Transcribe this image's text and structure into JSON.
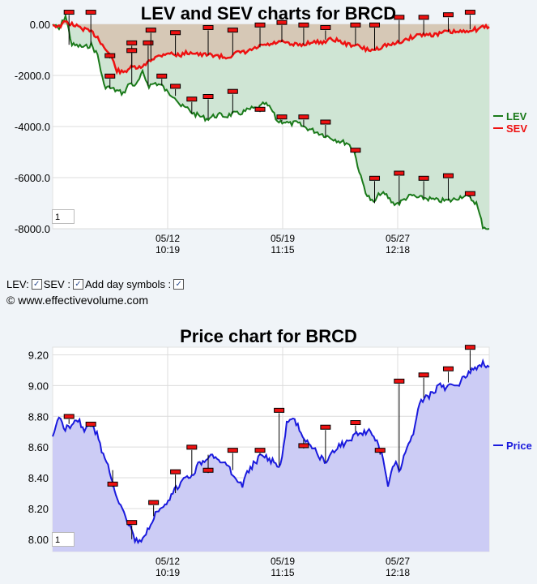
{
  "controls": {
    "lev_label": "LEV:",
    "sev_label": "SEV :",
    "day_symbols_label": "Add day symbols :",
    "lev_checked": true,
    "sev_checked": true,
    "day_symbols_checked": true
  },
  "copyright": "© www.effectivevolume.com",
  "chart_data": [
    {
      "type": "area",
      "title": "LEV and SEV charts for BRCD",
      "ylim": [
        -8000,
        0
      ],
      "yticks": [
        "0.00",
        "-2000.0",
        "-4000.0",
        "-6000.0",
        "-8000.0"
      ],
      "xticks": [
        {
          "date": "05/12",
          "time": "10:19"
        },
        {
          "date": "05/19",
          "time": "11:15"
        },
        {
          "date": "05/27",
          "time": "12:18"
        }
      ],
      "range_input": "1",
      "colors": {
        "LEV": "#1a7a1a",
        "SEV": "#ee1111",
        "lev_fill": "#cfe5d4",
        "sev_fill": "#d6c6b4"
      },
      "series": [
        {
          "name": "LEV",
          "values": [
            0,
            -200,
            350,
            -800,
            -850,
            -900,
            -800,
            -1200,
            -2400,
            -2500,
            -2600,
            -2700,
            -2300,
            -2400,
            -1900,
            -2400,
            -2300,
            -2400,
            -2700,
            -2800,
            -3200,
            -3300,
            -3500,
            -3600,
            -3700,
            -3600,
            -3550,
            -3600,
            -3500,
            -3500,
            -3400,
            -3300,
            -3300,
            -3100,
            -3300,
            -3800,
            -3800,
            -3900,
            -3850,
            -4000,
            -4100,
            -4200,
            -4300,
            -4400,
            -4500,
            -4600,
            -4650,
            -5000,
            -6000,
            -6700,
            -7000,
            -6600,
            -6700,
            -7000,
            -7000,
            -6800,
            -6700,
            -6800,
            -6800,
            -6850,
            -6900,
            -6900,
            -6900,
            -6800,
            -6700,
            -6800,
            -7000,
            -7900,
            -8000
          ]
        },
        {
          "name": "SEV",
          "values": [
            0,
            -100,
            100,
            0,
            -100,
            -200,
            -300,
            -500,
            -900,
            -1200,
            -1800,
            -1900,
            -1700,
            -1700,
            -1700,
            -1400,
            -1300,
            -1200,
            -1100,
            -1200,
            -1200,
            -1100,
            -1100,
            -1200,
            -1200,
            -1200,
            -1250,
            -1300,
            -1200,
            -1100,
            -1100,
            -1000,
            -900,
            -800,
            -800,
            -700,
            -700,
            -800,
            -800,
            -800,
            -700,
            -700,
            -700,
            -600,
            -600,
            -700,
            -800,
            -800,
            -900,
            -1000,
            -1000,
            -900,
            -800,
            -800,
            -700,
            -600,
            -500,
            -400,
            -400,
            -400,
            -400,
            -300,
            -300,
            -300,
            -300,
            -200,
            -200,
            -100,
            -100
          ]
        }
      ],
      "day_markers": {
        "LEV": [
          [
            6,
            300
          ],
          [
            14,
            300
          ],
          [
            21,
            -2200
          ],
          [
            29,
            -900
          ],
          [
            35,
            -900
          ],
          [
            40,
            -2200
          ],
          [
            45,
            -2600
          ],
          [
            51,
            -3100
          ],
          [
            57,
            -3000
          ],
          [
            66,
            -2800
          ],
          [
            76,
            -3500
          ],
          [
            84,
            -3800
          ],
          [
            92,
            -3800
          ],
          [
            100,
            -4000
          ],
          [
            111,
            -5100
          ],
          [
            118,
            -6200
          ],
          [
            127,
            -6000
          ],
          [
            136,
            -6200
          ],
          [
            145,
            -6100
          ],
          [
            153,
            -6800
          ]
        ],
        "SEV": [
          [
            21,
            -1400
          ],
          [
            29,
            -1200
          ],
          [
            36,
            -400
          ],
          [
            45,
            -500
          ],
          [
            57,
            -300
          ],
          [
            66,
            -400
          ],
          [
            76,
            -200
          ],
          [
            84,
            -100
          ],
          [
            92,
            -200
          ],
          [
            100,
            -300
          ],
          [
            111,
            -200
          ],
          [
            118,
            -200
          ],
          [
            127,
            100
          ],
          [
            136,
            100
          ],
          [
            145,
            200
          ],
          [
            153,
            300
          ]
        ]
      }
    },
    {
      "type": "area",
      "title": "Price chart for BRCD",
      "ylim": [
        7.92,
        9.25
      ],
      "yticks": [
        "9.20",
        "9.00",
        "8.80",
        "8.60",
        "8.40",
        "8.20",
        "8.00"
      ],
      "xticks": [
        {
          "date": "05/12",
          "time": "10:19"
        },
        {
          "date": "05/19",
          "time": "11:15"
        },
        {
          "date": "05/27",
          "time": "12:18"
        }
      ],
      "range_input": "1",
      "colors": {
        "Price": "#1a1add",
        "fill": "#ccccf5"
      },
      "series": [
        {
          "name": "Price",
          "values": [
            8.65,
            8.8,
            8.72,
            8.75,
            8.78,
            8.72,
            8.75,
            8.68,
            8.55,
            8.45,
            8.3,
            8.2,
            8.1,
            8.0,
            7.97,
            8.05,
            8.15,
            8.18,
            8.22,
            8.3,
            8.35,
            8.4,
            8.42,
            8.48,
            8.52,
            8.55,
            8.52,
            8.5,
            8.45,
            8.4,
            8.35,
            8.45,
            8.5,
            8.55,
            8.52,
            8.5,
            8.48,
            8.75,
            8.78,
            8.72,
            8.65,
            8.6,
            8.55,
            8.5,
            8.55,
            8.6,
            8.62,
            8.65,
            8.7,
            8.68,
            8.72,
            8.65,
            8.55,
            8.35,
            8.5,
            8.45,
            8.6,
            8.7,
            8.9,
            8.92,
            8.95,
            9.0,
            8.98,
            9.02,
            9.0,
            9.05,
            9.1,
            9.12,
            9.15,
            9.12
          ]
        }
      ],
      "day_markers": {
        "Price": [
          [
            6,
            8.77
          ],
          [
            14,
            8.72
          ],
          [
            22,
            8.33
          ],
          [
            29,
            8.08
          ],
          [
            37,
            8.21
          ],
          [
            45,
            8.41
          ],
          [
            51,
            8.57
          ],
          [
            57,
            8.42
          ],
          [
            66,
            8.55
          ],
          [
            76,
            8.55
          ],
          [
            83,
            8.81
          ],
          [
            92,
            8.58
          ],
          [
            100,
            8.7
          ],
          [
            111,
            8.73
          ],
          [
            120,
            8.55
          ],
          [
            127,
            9.0
          ],
          [
            136,
            9.04
          ],
          [
            145,
            9.08
          ],
          [
            153,
            9.22
          ]
        ]
      },
      "legend": [
        "Price"
      ]
    }
  ]
}
